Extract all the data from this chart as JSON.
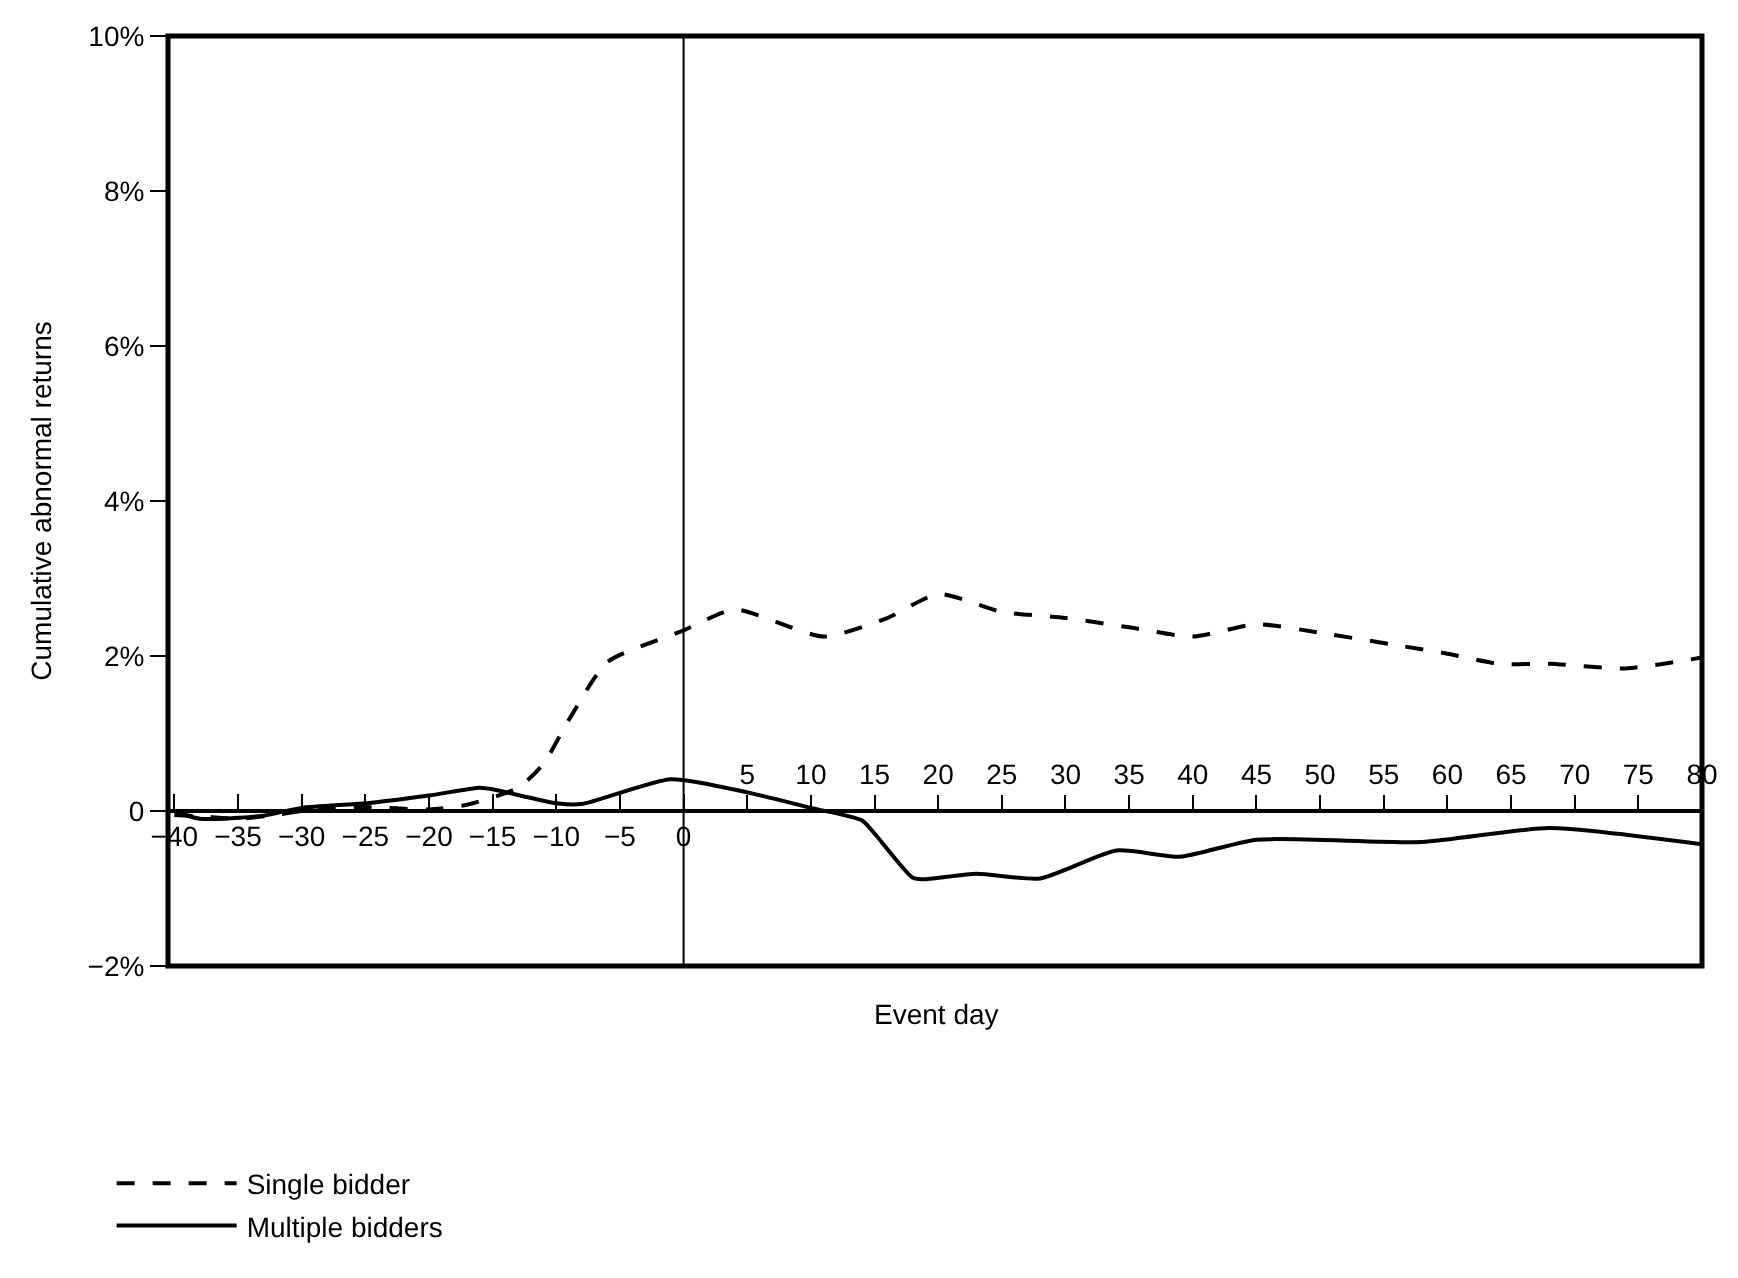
{
  "chart_data": {
    "type": "line",
    "xlabel": "Event day",
    "ylabel": "Cumulative abnormal returns",
    "xlim": [
      -40.5,
      80
    ],
    "xticks": [
      {
        "value": -40,
        "label": "−40"
      },
      {
        "value": -35,
        "label": "−35"
      },
      {
        "value": -30,
        "label": "−30"
      },
      {
        "value": -25,
        "label": "−25"
      },
      {
        "value": -20,
        "label": "−20"
      },
      {
        "value": -15,
        "label": "−15"
      },
      {
        "value": -10,
        "label": "−10"
      },
      {
        "value": -5,
        "label": "−5"
      },
      0
    ],
    "x2lim": [
      -40.5,
      80
    ],
    "x2ticks": [
      5,
      10,
      15,
      20,
      25,
      30,
      35,
      40,
      45,
      50,
      55,
      60,
      65,
      70,
      75,
      80
    ],
    "ylim": [
      -2,
      10
    ],
    "yticks": [
      {
        "value": -2,
        "label": "−2%"
      },
      0,
      {
        "value": 2,
        "label": "2%"
      },
      {
        "value": 4,
        "label": "4%"
      },
      {
        "value": 6,
        "label": "6%"
      },
      {
        "value": 8,
        "label": "8%"
      },
      {
        "value": 10,
        "label": "10%"
      }
    ],
    "ref_lines": [
      {
        "axis": "x",
        "value": 0,
        "color": "#000000"
      }
    ],
    "legend": "bottom left",
    "series": [
      {
        "name": "Single bidder",
        "color": "#000000",
        "line_style": "dashed",
        "x": [
          -40,
          -37,
          -35,
          -32,
          -30,
          -25,
          -20,
          -17,
          -13,
          -11,
          -9,
          -6,
          0,
          4,
          11,
          16,
          20,
          25,
          30,
          35,
          40,
          45,
          50,
          56,
          60,
          64,
          68,
          74,
          80
        ],
        "values": [
          -0.05,
          -0.08,
          -0.1,
          -0.05,
          0.0,
          0.05,
          0.02,
          0.08,
          0.3,
          0.61,
          1.18,
          1.92,
          2.33,
          2.6,
          2.25,
          2.49,
          2.8,
          2.57,
          2.49,
          2.37,
          2.25,
          2.41,
          2.3,
          2.14,
          2.03,
          1.9,
          1.9,
          1.84,
          1.98
        ]
      },
      {
        "name": "Multiple bidders",
        "color": "#000000",
        "line_style": "solid",
        "x": [
          -40,
          -38,
          -33,
          -30,
          -25,
          -20,
          -16,
          -15,
          -10,
          -8,
          -1,
          5,
          10,
          14,
          15,
          18,
          19,
          23,
          28,
          34,
          39,
          45,
          58,
          68,
          80
        ],
        "values": [
          0.0,
          -0.1,
          -0.06,
          0.04,
          0.1,
          0.2,
          0.3,
          0.28,
          0.1,
          0.09,
          0.41,
          0.24,
          0.04,
          -0.12,
          -0.29,
          -0.86,
          -0.88,
          -0.81,
          -0.87,
          -0.51,
          -0.59,
          -0.37,
          -0.4,
          -0.22,
          -0.43
        ]
      }
    ]
  }
}
